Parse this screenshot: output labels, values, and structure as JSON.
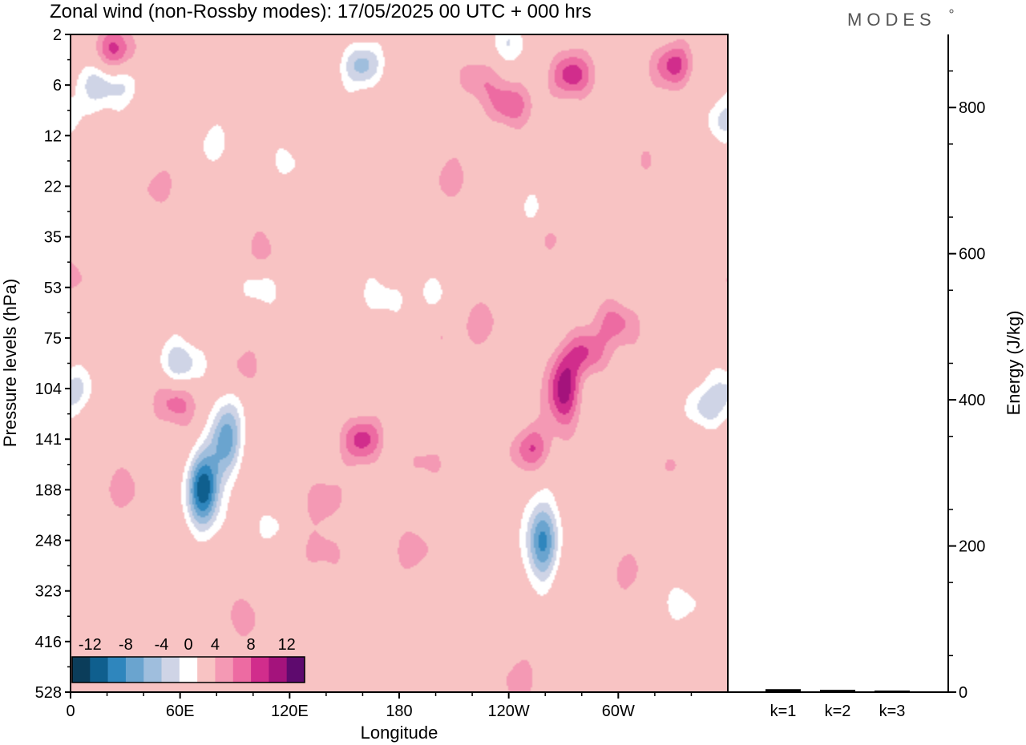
{
  "header": {
    "title": "Zonal wind (non-Rossby modes):  17/05/2025  00 UTC  + 000 hrs",
    "logo": "MODES"
  },
  "chart_data": [
    {
      "type": "heatmap",
      "title": "Zonal wind (non-Rossby modes):  17/05/2025  00 UTC  + 000 hrs",
      "xlabel": "Longitude",
      "ylabel": "Pressure levels (hPa)",
      "x_ticks": [
        "0",
        "60E",
        "120E",
        "180",
        "120W",
        "60W"
      ],
      "x_tick_degrees": [
        0,
        60,
        120,
        180,
        240,
        300
      ],
      "xlim": [
        0,
        360
      ],
      "y_ticks": [
        "2",
        "6",
        "12",
        "22",
        "35",
        "53",
        "75",
        "104",
        "141",
        "188",
        "248",
        "323",
        "416",
        "528"
      ],
      "colorbar": {
        "labels": [
          "-12",
          "-8",
          "-4",
          "0",
          "4",
          "8",
          "12"
        ],
        "levels": [
          -14,
          -12,
          -10,
          -8,
          -6,
          -4,
          -2,
          2,
          4,
          6,
          8,
          10,
          12,
          14
        ],
        "colors": [
          "#0b3d5a",
          "#0f5f8e",
          "#2f86bd",
          "#6aa4cf",
          "#9fbedd",
          "#cfd4e6",
          "#ffffff",
          "#f8c3c3",
          "#f499b4",
          "#ed6ba2",
          "#d12d8c",
          "#a4137c",
          "#5e0a6e"
        ]
      },
      "features": [
        {
          "lon": 73,
          "level": 9.0,
          "value": -13
        },
        {
          "lon": 85,
          "level": 8.0,
          "value": -9
        },
        {
          "lon": 258,
          "level": 10.0,
          "value": -11
        },
        {
          "lon": 252,
          "level": 8.2,
          "value": 6
        },
        {
          "lon": 270,
          "level": 7.0,
          "value": 9
        },
        {
          "lon": 283,
          "level": 6.3,
          "value": 6
        },
        {
          "lon": 300,
          "level": 5.7,
          "value": 5
        },
        {
          "lon": 160,
          "level": 8.0,
          "value": 7
        },
        {
          "lon": 138,
          "level": 9.2,
          "value": 4
        },
        {
          "lon": 60,
          "level": 6.5,
          "value": -6
        },
        {
          "lon": 105,
          "level": 5.0,
          "value": -3
        },
        {
          "lon": 58,
          "level": 7.3,
          "value": 5
        },
        {
          "lon": 160,
          "level": 0.6,
          "value": -7
        },
        {
          "lon": 24,
          "level": 0.3,
          "value": 6
        },
        {
          "lon": 330,
          "level": 0.6,
          "value": 7
        },
        {
          "lon": 275,
          "level": 0.8,
          "value": 8
        },
        {
          "lon": 240,
          "level": 1.4,
          "value": 6
        },
        {
          "lon": 222,
          "level": 0.9,
          "value": 4
        },
        {
          "lon": 15,
          "level": 1.0,
          "value": -5
        },
        {
          "lon": 240,
          "level": 0.2,
          "value": -4
        },
        {
          "lon": 357,
          "level": 1.7,
          "value": -4
        },
        {
          "lon": 348,
          "level": 7.4,
          "value": -5
        },
        {
          "lon": 2,
          "level": 7.0,
          "value": -4
        },
        {
          "lon": 200,
          "level": 6.0,
          "value": 2.5
        },
        {
          "lon": 225,
          "level": 5.7,
          "value": 3
        },
        {
          "lon": 30,
          "level": 1.0,
          "value": -3
        },
        {
          "lon": 78,
          "level": 2.2,
          "value": -3
        },
        {
          "lon": 120,
          "level": 2.5,
          "value": -2.5
        },
        {
          "lon": 208,
          "level": 2.9,
          "value": 3
        },
        {
          "lon": 48,
          "level": 3.0,
          "value": 3
        },
        {
          "lon": 170,
          "level": 5.2,
          "value": -3
        },
        {
          "lon": 200,
          "level": 5.1,
          "value": -3
        },
        {
          "lon": 187,
          "level": 10.2,
          "value": 3
        },
        {
          "lon": 140,
          "level": 10.2,
          "value": 3
        },
        {
          "lon": 110,
          "level": 9.7,
          "value": -3
        },
        {
          "lon": 95,
          "level": 6.6,
          "value": 2.5
        },
        {
          "lon": 330,
          "level": 8.5,
          "value": 2.5
        },
        {
          "lon": 335,
          "level": 11.2,
          "value": -3
        },
        {
          "lon": 95,
          "level": 11.5,
          "value": 3
        },
        {
          "lon": 245,
          "level": 12.8,
          "value": 3
        },
        {
          "lon": 30,
          "level": 9.0,
          "value": 3
        },
        {
          "lon": 305,
          "level": 10.6,
          "value": 3
        },
        {
          "lon": 253,
          "level": 3.5,
          "value": -2.5
        },
        {
          "lon": 316,
          "level": 2.5,
          "value": 2.5
        },
        {
          "lon": 5,
          "level": 4.8,
          "value": 2.5
        },
        {
          "lon": 105,
          "level": 4.3,
          "value": 3
        },
        {
          "lon": 195,
          "level": 8.5,
          "value": 3
        },
        {
          "lon": 265,
          "level": 4.0,
          "value": 2.5
        }
      ]
    },
    {
      "type": "bar",
      "ylabel": "Energy (J/kg)",
      "ylim": [
        0,
        900
      ],
      "y_ticks": [
        "0",
        "200",
        "400",
        "600",
        "800"
      ],
      "y_tick_values": [
        0,
        200,
        400,
        600,
        800
      ],
      "categories": [
        "k=1",
        "k=2",
        "k=3"
      ],
      "values": [
        3,
        2,
        1
      ]
    }
  ]
}
